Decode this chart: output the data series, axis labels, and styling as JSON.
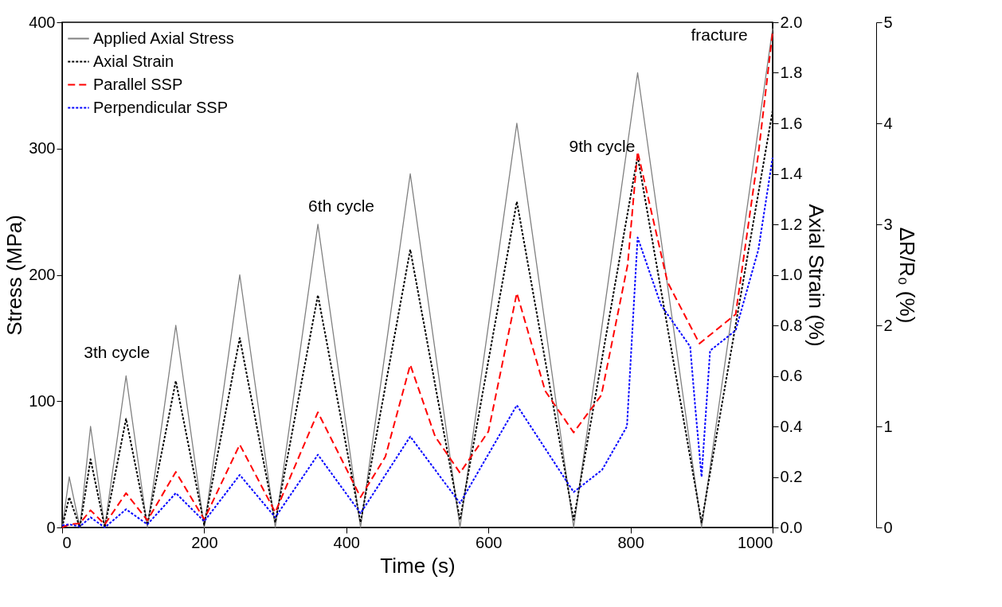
{
  "chart_data": {
    "type": "line",
    "xlabel": "Time (s)",
    "ylabel": "Stress (MPa)",
    "y2label": "Axial Strain (%)",
    "y3label": "ΔR/R₀ (%)",
    "xlim": [
      0,
      1000
    ],
    "xticks": [
      0,
      200,
      400,
      600,
      800,
      1000
    ],
    "ylim": [
      0,
      400
    ],
    "yticks": [
      0,
      100,
      200,
      300,
      400
    ],
    "y2lim": [
      0,
      2.0
    ],
    "y2ticks": [
      {
        "value": 0,
        "label": "0.0"
      },
      0.2,
      0.4,
      0.6,
      0.8,
      {
        "value": 1,
        "label": "1.0"
      },
      1.2,
      1.4,
      1.6,
      1.8,
      {
        "value": 2,
        "label": "2.0"
      }
    ],
    "y3lim": [
      0,
      5
    ],
    "y3ticks": [
      0,
      1,
      2,
      3,
      4,
      5
    ],
    "grid": false,
    "legend": "top left",
    "marker": "none",
    "annotations": [
      "3th cycle",
      "6th cycle",
      "9th cycle",
      "fracture"
    ],
    "series": [
      {
        "name": "Applied Axial Stress",
        "color": "#808080",
        "line_style": "solid",
        "x": [
          0,
          10,
          25,
          40,
          60,
          90,
          120,
          160,
          200,
          250,
          300,
          360,
          420,
          490,
          560,
          640,
          720,
          810,
          900,
          1000
        ],
        "values": [
          0,
          40,
          0,
          80,
          0,
          120,
          0,
          160,
          0,
          200,
          0,
          240,
          0,
          280,
          0,
          320,
          0,
          360,
          0,
          395
        ]
      },
      {
        "name": "Axial Strain",
        "color": "#000000",
        "line_style": "dotted",
        "axis": "y2",
        "x": [
          0,
          10,
          25,
          40,
          60,
          90,
          120,
          160,
          200,
          250,
          300,
          360,
          420,
          490,
          560,
          640,
          720,
          810,
          900,
          1000
        ],
        "values": [
          0,
          0.12,
          0,
          0.27,
          0,
          0.43,
          0.01,
          0.58,
          0.01,
          0.75,
          0.02,
          0.92,
          0.02,
          1.1,
          0.03,
          1.29,
          0.03,
          1.47,
          0.02,
          1.65
        ]
      },
      {
        "name": "Parallel SSP",
        "color": "#ff0000",
        "line_style": "dashed",
        "axis": "y3",
        "x": [
          0,
          10,
          25,
          40,
          60,
          90,
          120,
          160,
          200,
          250,
          300,
          360,
          420,
          455,
          490,
          525,
          560,
          600,
          640,
          680,
          720,
          759,
          796,
          810,
          852,
          897,
          948,
          980,
          1000
        ],
        "values": [
          0,
          0.03,
          0.04,
          0.17,
          0.03,
          0.34,
          0.07,
          0.55,
          0.08,
          0.82,
          0.15,
          1.14,
          0.3,
          0.7,
          1.61,
          0.9,
          0.54,
          0.95,
          2.32,
          1.35,
          0.94,
          1.31,
          2.6,
          3.72,
          2.43,
          1.82,
          2.11,
          3.7,
          4.9
        ]
      },
      {
        "name": "Perpendicular SSP",
        "color": "#0000ff",
        "line_style": "dotted",
        "axis": "y3",
        "x": [
          0,
          10,
          25,
          40,
          60,
          90,
          120,
          160,
          200,
          250,
          300,
          360,
          420,
          490,
          560,
          640,
          720,
          760,
          795,
          810,
          843,
          884,
          891,
          900,
          912,
          948,
          980,
          1000
        ],
        "values": [
          0.02,
          0.03,
          0.01,
          0.1,
          0,
          0.18,
          0.03,
          0.34,
          0.06,
          0.52,
          0.1,
          0.72,
          0.14,
          0.9,
          0.24,
          1.21,
          0.35,
          0.57,
          1.0,
          2.87,
          2.2,
          1.79,
          1.2,
          0.5,
          1.75,
          1.95,
          2.75,
          3.66
        ]
      }
    ]
  }
}
